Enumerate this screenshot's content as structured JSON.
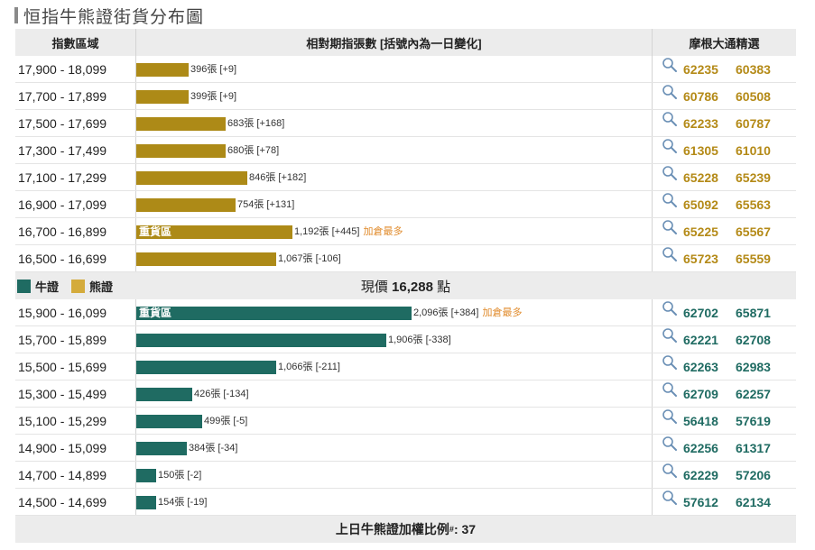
{
  "title": "恒指牛熊證街貨分布圖",
  "header": {
    "col1": "指數區域",
    "col2": "相對期指張數 [括號內為一日變化]",
    "col3": "摩根大通精選"
  },
  "bear_rows": [
    {
      "range": "17,900 - 18,099",
      "value": 396,
      "label": "396張 [+9]",
      "inlabel": "",
      "note": "",
      "codes": [
        "62235",
        "60383"
      ]
    },
    {
      "range": "17,700 - 17,899",
      "value": 399,
      "label": "399張 [+9]",
      "inlabel": "",
      "note": "",
      "codes": [
        "60786",
        "60508"
      ]
    },
    {
      "range": "17,500 - 17,699",
      "value": 683,
      "label": "683張 [+168]",
      "inlabel": "",
      "note": "",
      "codes": [
        "62233",
        "60787"
      ]
    },
    {
      "range": "17,300 - 17,499",
      "value": 680,
      "label": "680張 [+78]",
      "inlabel": "",
      "note": "",
      "codes": [
        "61305",
        "61010"
      ]
    },
    {
      "range": "17,100 - 17,299",
      "value": 846,
      "label": "846張 [+182]",
      "inlabel": "",
      "note": "",
      "codes": [
        "65228",
        "65239"
      ]
    },
    {
      "range": "16,900 - 17,099",
      "value": 754,
      "label": "754張 [+131]",
      "inlabel": "",
      "note": "",
      "codes": [
        "65092",
        "65563"
      ]
    },
    {
      "range": "16,700 - 16,899",
      "value": 1192,
      "label": "1,192張 [+445]",
      "inlabel": "重貨區",
      "note": "加倉最多",
      "codes": [
        "65225",
        "65567"
      ]
    },
    {
      "range": "16,500 - 16,699",
      "value": 1067,
      "label": "1,067張 [-106]",
      "inlabel": "",
      "note": "",
      "codes": [
        "65723",
        "65559"
      ]
    }
  ],
  "middle": {
    "legend_bull": "牛證",
    "legend_bear": "熊證",
    "price_prefix": "現價",
    "price_value": "16,288",
    "price_suffix": "點"
  },
  "bull_rows": [
    {
      "range": "15,900 - 16,099",
      "value": 2096,
      "label": "2,096張 [+384]",
      "inlabel": "重貨區",
      "note": "加倉最多",
      "codes": [
        "62702",
        "65871"
      ]
    },
    {
      "range": "15,700 - 15,899",
      "value": 1906,
      "label": "1,906張 [-338]",
      "inlabel": "",
      "note": "",
      "codes": [
        "62221",
        "62708"
      ]
    },
    {
      "range": "15,500 - 15,699",
      "value": 1066,
      "label": "1,066張 [-211]",
      "inlabel": "",
      "note": "",
      "codes": [
        "62263",
        "62983"
      ]
    },
    {
      "range": "15,300 - 15,499",
      "value": 426,
      "label": "426張 [-134]",
      "inlabel": "",
      "note": "",
      "codes": [
        "62709",
        "62257"
      ]
    },
    {
      "range": "15,100 - 15,299",
      "value": 499,
      "label": "499張 [-5]",
      "inlabel": "",
      "note": "",
      "codes": [
        "56418",
        "57619"
      ]
    },
    {
      "range": "14,900 - 15,099",
      "value": 384,
      "label": "384張 [-34]",
      "inlabel": "",
      "note": "",
      "codes": [
        "62256",
        "61317"
      ]
    },
    {
      "range": "14,700 - 14,899",
      "value": 150,
      "label": "150張 [-2]",
      "inlabel": "",
      "note": "",
      "codes": [
        "62229",
        "57206"
      ]
    },
    {
      "range": "14,500 - 14,699",
      "value": 154,
      "label": "154張 [-19]",
      "inlabel": "",
      "note": "",
      "codes": [
        "57612",
        "62134"
      ]
    }
  ],
  "footer": {
    "text": "上日牛熊證加權比例",
    "mark": "#",
    "value": ": 37"
  },
  "colors": {
    "bull": "#1f6b62",
    "bear": "#ad8a17",
    "note": "#e08a2a"
  }
}
